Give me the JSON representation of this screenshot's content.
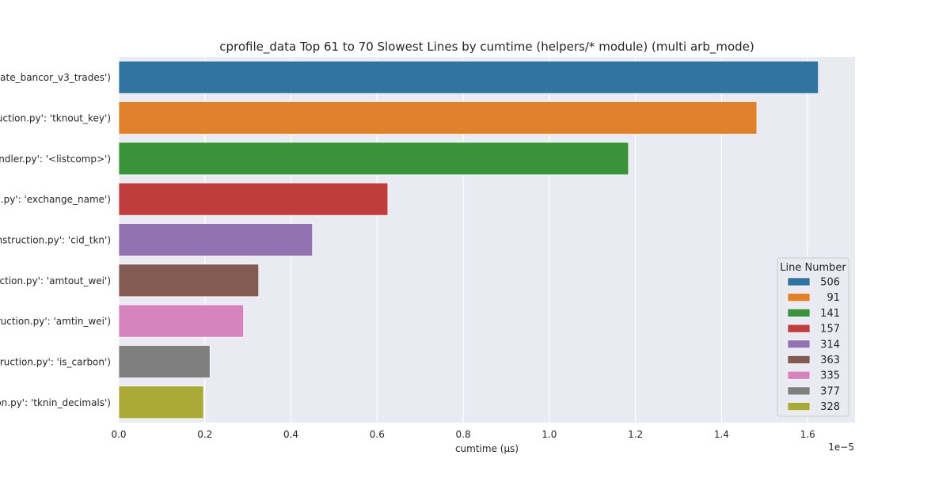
{
  "chart_data": {
    "type": "bar",
    "orientation": "horizontal",
    "title": "cprofile_data Top 61 to 70 Slowest Lines by cumtime (helpers/* module) (multi arb_mode)",
    "xlabel": "cumtime (μs)",
    "ylabel": "",
    "x_offset_label": "1e−5",
    "xlim": [
      0,
      1.71e-05
    ],
    "xticks": [
      0,
      2e-06,
      4e-06,
      6e-06,
      8e-06,
      1e-05,
      1.2e-05,
      1.4e-05,
      1.6e-05
    ],
    "xtick_labels": [
      "0.0",
      "0.2",
      "0.4",
      "0.6",
      "0.8",
      "1.0",
      "1.2",
      "1.4",
      "1.6"
    ],
    "grid": true,
    "categories": [
      "ate_bancor_v3_trades')",
      "uction.py': 'tknout_key')",
      "andler.py': '<listcomp>')",
      ".py': 'exchange_name')",
      "nstruction.py': 'cid_tkn')",
      "ction.py': 'amtout_wei')",
      "ruction.py': 'amtin_wei')",
      "ruction.py': 'is_carbon')",
      "on.py': 'tknin_decimals')"
    ],
    "values": [
      1.625e-05,
      1.482e-05,
      1.184e-05,
      6.25e-06,
      4.5e-06,
      3.25e-06,
      2.9e-06,
      2.12e-06,
      1.97e-06
    ],
    "colors": [
      "#3274a1",
      "#e1812c",
      "#3a923a",
      "#c03d3e",
      "#9372b2",
      "#845b53",
      "#d684bd",
      "#7f7f7f",
      "#a9aa35"
    ],
    "legend": {
      "title": "Line Number",
      "placement": "bottom-right",
      "entries": [
        "506",
        "91",
        "141",
        "157",
        "314",
        "363",
        "335",
        "377",
        "328"
      ]
    }
  }
}
